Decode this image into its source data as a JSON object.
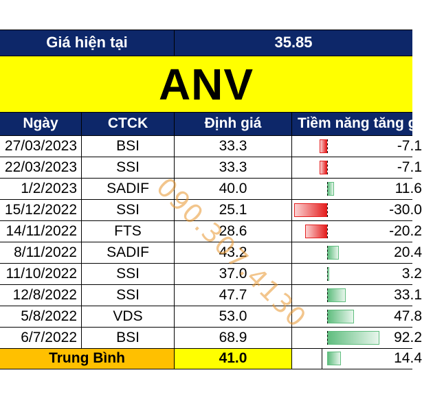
{
  "current_price": {
    "label": "Giá hiện tại",
    "value": "35.85"
  },
  "ticker": "ANV",
  "columns": [
    "Ngày",
    "CTCK",
    "Định giá",
    "Tiềm năng tăng g"
  ],
  "rows": [
    {
      "date": "27/03/2023",
      "broker": "BSI",
      "valuation": "33.3",
      "upside_text": "-7.1",
      "upside_pct": -7.1
    },
    {
      "date": "22/03/2023",
      "broker": "SSI",
      "valuation": "33.3",
      "upside_text": "-7.1",
      "upside_pct": -7.1
    },
    {
      "date": "1/2/2023",
      "broker": "SADIF",
      "valuation": "40.0",
      "upside_text": "11.6",
      "upside_pct": 11.6
    },
    {
      "date": "15/12/2022",
      "broker": "SSI",
      "valuation": "25.1",
      "upside_text": "-30.0",
      "upside_pct": -30.0
    },
    {
      "date": "14/11/2022",
      "broker": "FTS",
      "valuation": "28.6",
      "upside_text": "-20.2",
      "upside_pct": -20.2
    },
    {
      "date": "8/11/2022",
      "broker": "SADIF",
      "valuation": "43.2",
      "upside_text": "20.4",
      "upside_pct": 20.4
    },
    {
      "date": "11/10/2022",
      "broker": "SSI",
      "valuation": "37.0",
      "upside_text": "3.2",
      "upside_pct": 3.2
    },
    {
      "date": "12/8/2022",
      "broker": "SSI",
      "valuation": "47.7",
      "upside_text": "33.1",
      "upside_pct": 33.1
    },
    {
      "date": "5/8/2022",
      "broker": "VDS",
      "valuation": "53.0",
      "upside_text": "47.8",
      "upside_pct": 47.8
    },
    {
      "date": "6/7/2022",
      "broker": "BSI",
      "valuation": "68.9",
      "upside_text": "92.2",
      "upside_pct": 92.2
    }
  ],
  "average": {
    "label": "Trung Bình",
    "valuation": "41.0",
    "upside_text": "14.4",
    "upside_pct": 14.4
  },
  "watermark": "090.307.4130",
  "colors": {
    "header_navy": "#0d2769",
    "title_yellow": "#ffff00",
    "average_orange": "#ffc000",
    "negative_bar": "#e41e1e",
    "positive_bar": "#5fbd7e"
  }
}
